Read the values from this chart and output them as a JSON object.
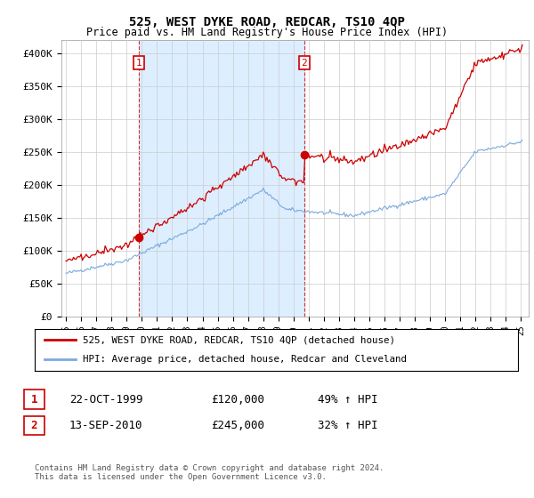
{
  "title": "525, WEST DYKE ROAD, REDCAR, TS10 4QP",
  "subtitle": "Price paid vs. HM Land Registry's House Price Index (HPI)",
  "legend_line1": "525, WEST DYKE ROAD, REDCAR, TS10 4QP (detached house)",
  "legend_line2": "HPI: Average price, detached house, Redcar and Cleveland",
  "transaction1_label": "1",
  "transaction1_date": "22-OCT-1999",
  "transaction1_price": "£120,000",
  "transaction1_hpi": "49% ↑ HPI",
  "transaction1_year": 1999.8,
  "transaction1_value": 120000,
  "transaction2_label": "2",
  "transaction2_date": "13-SEP-2010",
  "transaction2_price": "£245,000",
  "transaction2_hpi": "32% ↑ HPI",
  "transaction2_year": 2010.7,
  "transaction2_value": 245000,
  "footer": "Contains HM Land Registry data © Crown copyright and database right 2024.\nThis data is licensed under the Open Government Licence v3.0.",
  "red_color": "#cc0000",
  "blue_color": "#7aaadd",
  "shade_color": "#ddeeff",
  "grid_color": "#cccccc",
  "background_color": "#ffffff",
  "ylim": [
    0,
    420000
  ],
  "yticks": [
    0,
    50000,
    100000,
    150000,
    200000,
    250000,
    300000,
    350000,
    400000
  ],
  "ytick_labels": [
    "£0",
    "£50K",
    "£100K",
    "£150K",
    "£200K",
    "£250K",
    "£300K",
    "£350K",
    "£400K"
  ],
  "xlim_start": 1994.7,
  "xlim_end": 2025.5
}
